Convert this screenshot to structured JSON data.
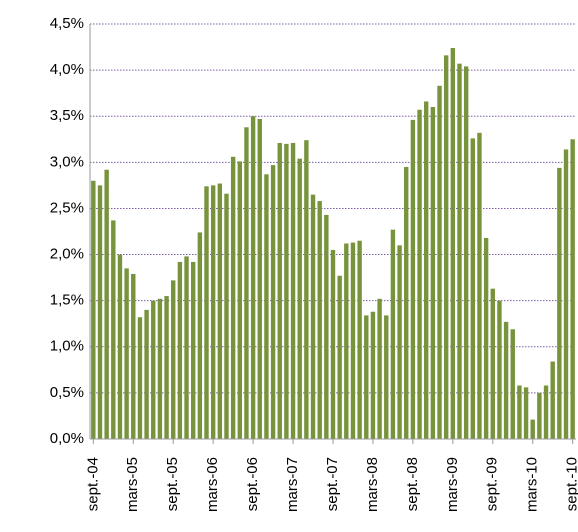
{
  "chart_data": {
    "type": "bar",
    "color": "#77933c",
    "grid": true,
    "categories": [
      "sept.-04",
      null,
      null,
      null,
      null,
      null,
      "mars-05",
      null,
      null,
      null,
      null,
      null,
      "sept.-05",
      null,
      null,
      null,
      null,
      null,
      "mars-06",
      null,
      null,
      null,
      null,
      null,
      "sept.-06",
      null,
      null,
      null,
      null,
      null,
      "mars-07",
      null,
      null,
      null,
      null,
      null,
      "sept.-07",
      null,
      null,
      null,
      null,
      null,
      "mars-08",
      null,
      null,
      null,
      null,
      null,
      "sept.-08",
      null,
      null,
      null,
      null,
      null,
      "mars-09",
      null,
      null,
      null,
      null,
      null,
      "sept.-09",
      null,
      null,
      null,
      null,
      null,
      "mars-10",
      null,
      null,
      null,
      null,
      null,
      "sept.-10"
    ],
    "values": [
      2.8,
      2.75,
      2.92,
      2.37,
      2.0,
      1.85,
      1.79,
      1.32,
      1.4,
      1.5,
      1.52,
      1.55,
      1.72,
      1.92,
      1.98,
      1.92,
      2.24,
      2.74,
      2.75,
      2.77,
      2.66,
      3.06,
      3.01,
      3.38,
      3.5,
      3.47,
      2.87,
      2.97,
      3.21,
      3.2,
      3.21,
      3.04,
      3.24,
      2.65,
      2.58,
      2.43,
      2.05,
      1.77,
      2.12,
      2.13,
      2.15,
      1.34,
      1.38,
      1.52,
      1.34,
      2.27,
      2.1,
      2.95,
      3.46,
      3.57,
      3.66,
      3.6,
      3.83,
      4.16,
      4.24,
      4.07,
      4.04,
      3.26,
      3.32,
      2.18,
      1.63,
      1.5,
      1.27,
      1.19,
      0.58,
      0.56,
      0.21,
      0.5,
      0.58,
      0.84,
      2.94,
      3.14,
      3.25
    ],
    "ylim": [
      0,
      4.5
    ],
    "yticks": [
      {
        "value": 0,
        "label": "0,0%"
      },
      {
        "value": 0.5,
        "label": "0,5%"
      },
      {
        "value": 1,
        "label": "1,0%"
      },
      {
        "value": 1.5,
        "label": "1,5%"
      },
      {
        "value": 2,
        "label": "2,0%"
      },
      {
        "value": 2.5,
        "label": "2,5%"
      },
      {
        "value": 3,
        "label": "3,0%"
      },
      {
        "value": 3.5,
        "label": "3,5%"
      },
      {
        "value": 4,
        "label": "4,0%"
      },
      {
        "value": 4.5,
        "label": "4,5%"
      }
    ]
  }
}
